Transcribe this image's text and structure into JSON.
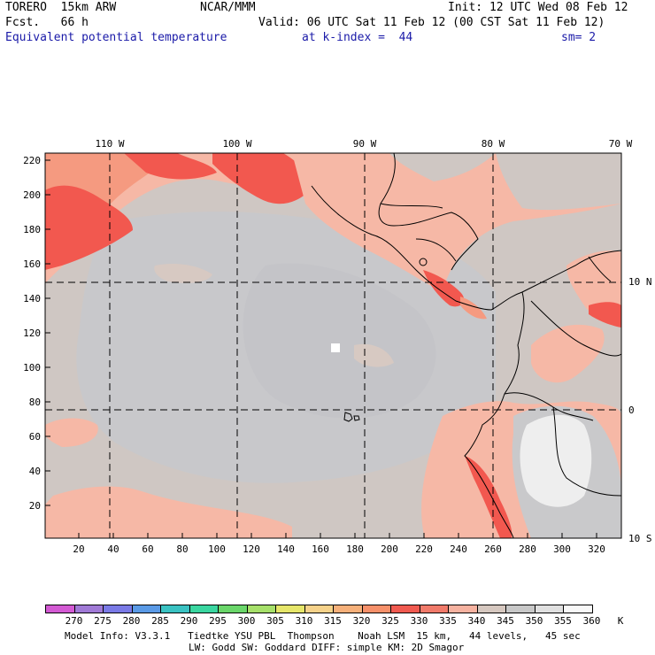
{
  "header": {
    "model": "TORERO  15km ARW",
    "center": "NCAR/MMM",
    "init": "Init: 12 UTC Wed 08 Feb 12",
    "forecast": "Fcst.   66 h",
    "valid": "Valid: 06 UTC Sat 11 Feb 12 (00 CST Sat 11 Feb 12)",
    "field": "Equivalent potential temperature",
    "level": "at k-index =  44",
    "smoothing": "sm= 2"
  },
  "map": {
    "longitude_labels": [
      "110 W",
      "100 W",
      "90 W",
      "80 W",
      "70 W"
    ],
    "latitude_labels": [
      "10 N",
      "0",
      "10 S"
    ],
    "y_ticks": [
      "220",
      "200",
      "180",
      "160",
      "140",
      "120",
      "100",
      "80",
      "60",
      "40",
      "20"
    ],
    "x_ticks": [
      "20",
      "40",
      "60",
      "80",
      "100",
      "120",
      "140",
      "160",
      "180",
      "200",
      "220",
      "240",
      "260",
      "280",
      "300",
      "320"
    ]
  },
  "colorbar": {
    "unit": "K",
    "levels": [
      "270",
      "275",
      "280",
      "285",
      "290",
      "295",
      "300",
      "305",
      "310",
      "315",
      "320",
      "325",
      "330",
      "335",
      "340",
      "345",
      "350",
      "355",
      "360"
    ],
    "colors": [
      "#d35ad3",
      "#a07ad6",
      "#7a7ae6",
      "#5a9ae6",
      "#3ac2c2",
      "#3ad6a0",
      "#6ad66a",
      "#a6e06a",
      "#e6e66a",
      "#f6d28a",
      "#f6b07a",
      "#f6906a",
      "#f05a50",
      "#f07a6a",
      "#f6b2a0",
      "#d6c8c0",
      "#c8c8c8",
      "#e0e0e0",
      "#f8f8f8"
    ]
  },
  "footer": {
    "line1": "Model Info: V3.3.1   Tiedtke YSU PBL  Thompson    Noah LSM  15 km,   44 levels,   45 sec",
    "line2": "LW: Godd SW: Goddard DIFF: simple KM: 2D Smagor"
  },
  "colors": {
    "gray": "#cfc7c3",
    "light_gray": "#c9c9cb",
    "pink": "#f6b8a6",
    "salmon": "#f59a80",
    "red": "#f2584f",
    "white_patch": "#eeeeee"
  }
}
